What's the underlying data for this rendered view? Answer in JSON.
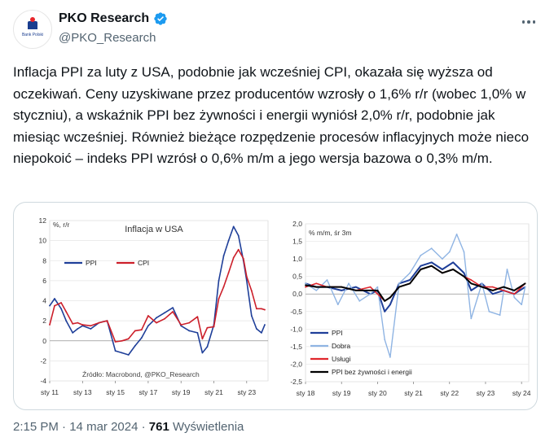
{
  "account": {
    "name": "PKO Research",
    "handle": "@PKO_Research",
    "avatar_caption": "Bank Polski"
  },
  "tweet": {
    "text": "Inflacja PPI za luty z USA, podobnie jak wcześniej CPI, okazała się wyższa od oczekiwań. Ceny uzyskiwane przez producentów wzrosły o 1,6% r/r (wobec 1,0% w styczniu), a wskaźnik PPI bez żywności i energii wyniósł 2,0% r/r, podobnie jak miesiąc wcześniej. Również bieżące rozpędzenie procesów inflacyjnych może nieco niepokoić – indeks PPI wzrósł o 0,6% m/m a jego wersja bazowa o 0,3% m/m."
  },
  "meta": {
    "time": "2:15 PM",
    "sep1": " · ",
    "date": "14 mar 2024",
    "sep2": " · ",
    "views": "761",
    "views_label": " Wyświetlenia"
  },
  "colors": {
    "ppi": "#1f3f99",
    "cpi": "#cc1f2a",
    "dobra": "#8fb4e3",
    "uslugi": "#e0262c",
    "core": "#000000"
  },
  "chart_data": [
    {
      "type": "line",
      "title": "Inflacja w USA",
      "ylabel": "%, r/r",
      "source": "Źródło: Macrobond, @PKO_Research",
      "ylim": [
        -4,
        12
      ],
      "yticks": [
        -4,
        -2,
        0,
        2,
        4,
        6,
        8,
        10,
        12
      ],
      "xlim": [
        2011,
        2024.3
      ],
      "xticks": [
        {
          "x": 2011,
          "label": "sty 11"
        },
        {
          "x": 2013,
          "label": "sty 13"
        },
        {
          "x": 2015,
          "label": "sty 15"
        },
        {
          "x": 2017,
          "label": "sty 17"
        },
        {
          "x": 2019,
          "label": "sty 19"
        },
        {
          "x": 2021,
          "label": "sty 21"
        },
        {
          "x": 2023,
          "label": "sty 23"
        }
      ],
      "legend_placement": "left",
      "series": [
        {
          "name": "PPI",
          "color": "#1f3f99",
          "x": [
            2011,
            2011.3,
            2011.7,
            2012,
            2012.4,
            2012.7,
            2013,
            2013.5,
            2014,
            2014.5,
            2015,
            2015.4,
            2015.8,
            2016.2,
            2016.6,
            2017,
            2017.5,
            2018,
            2018.5,
            2019,
            2019.5,
            2020,
            2020.3,
            2020.6,
            2021,
            2021.3,
            2021.6,
            2021.9,
            2022.2,
            2022.5,
            2022.8,
            2023,
            2023.3,
            2023.6,
            2023.9,
            2024.1
          ],
          "values": [
            3.5,
            4.2,
            3.2,
            2.0,
            0.8,
            1.2,
            1.5,
            1.2,
            1.8,
            2.0,
            -1.0,
            -1.2,
            -1.4,
            -0.5,
            0.3,
            1.5,
            2.3,
            2.8,
            3.3,
            1.5,
            1.0,
            0.8,
            -1.2,
            -0.6,
            1.6,
            6.0,
            8.5,
            10.0,
            11.4,
            10.5,
            8.0,
            6.0,
            2.5,
            1.2,
            0.8,
            1.6
          ]
        },
        {
          "name": "CPI",
          "color": "#cc1f2a",
          "x": [
            2011,
            2011.3,
            2011.7,
            2012,
            2012.4,
            2012.7,
            2013,
            2013.5,
            2014,
            2014.5,
            2015,
            2015.4,
            2015.8,
            2016.2,
            2016.6,
            2017,
            2017.5,
            2018,
            2018.5,
            2019,
            2019.5,
            2020,
            2020.3,
            2020.6,
            2021,
            2021.3,
            2021.6,
            2021.9,
            2022.2,
            2022.5,
            2022.8,
            2023,
            2023.3,
            2023.6,
            2023.9,
            2024.1
          ],
          "values": [
            1.6,
            3.5,
            3.8,
            2.9,
            1.7,
            1.8,
            1.6,
            1.5,
            1.8,
            2.0,
            -0.1,
            0.0,
            0.2,
            1.0,
            1.1,
            2.5,
            1.8,
            2.2,
            2.9,
            1.6,
            1.8,
            2.4,
            0.2,
            1.3,
            1.4,
            4.2,
            5.4,
            6.8,
            8.3,
            9.1,
            8.2,
            6.4,
            5.0,
            3.2,
            3.2,
            3.1
          ]
        }
      ]
    },
    {
      "type": "line",
      "title": "",
      "ylabel": "% m/m, śr 3m",
      "ylim": [
        -2.5,
        2.0
      ],
      "yticks": [
        -2.5,
        -2.0,
        -1.5,
        -1.0,
        -0.5,
        0.0,
        0.5,
        1.0,
        1.5,
        2.0
      ],
      "ytick_labels": [
        "-2,5",
        "-2,0",
        "-1,5",
        "-1,0",
        "-0,5",
        "0,0",
        "0,5",
        "1,0",
        "1,5",
        "2,0"
      ],
      "xlim": [
        2018,
        2024.2
      ],
      "xticks": [
        {
          "x": 2018,
          "label": "sty 18"
        },
        {
          "x": 2019,
          "label": "sty 19"
        },
        {
          "x": 2020,
          "label": "sty 20"
        },
        {
          "x": 2021,
          "label": "sty 21"
        },
        {
          "x": 2022,
          "label": "sty 22"
        },
        {
          "x": 2023,
          "label": "sty 23"
        },
        {
          "x": 2024,
          "label": "sty 24"
        }
      ],
      "legend_placement": "bottom-left",
      "series": [
        {
          "name": "PPI",
          "color": "#1f3f99",
          "x": [
            2018,
            2018.3,
            2018.6,
            2019,
            2019.4,
            2019.8,
            2020,
            2020.2,
            2020.35,
            2020.6,
            2020.9,
            2021.2,
            2021.5,
            2021.8,
            2022.1,
            2022.4,
            2022.6,
            2022.9,
            2023.2,
            2023.5,
            2023.8,
            2024.1
          ],
          "values": [
            0.3,
            0.2,
            0.2,
            0.1,
            0.2,
            0.0,
            0.1,
            -0.5,
            -0.3,
            0.3,
            0.4,
            0.8,
            0.9,
            0.7,
            0.9,
            0.6,
            0.1,
            0.3,
            0.0,
            0.1,
            0.0,
            0.2
          ]
        },
        {
          "name": "Dobra",
          "color": "#8fb4e3",
          "x": [
            2018,
            2018.3,
            2018.6,
            2018.9,
            2019.2,
            2019.5,
            2019.8,
            2020,
            2020.2,
            2020.35,
            2020.6,
            2020.9,
            2021.2,
            2021.5,
            2021.8,
            2022.0,
            2022.2,
            2022.4,
            2022.6,
            2022.9,
            2023.1,
            2023.4,
            2023.6,
            2023.8,
            2024.0,
            2024.1
          ],
          "values": [
            0.3,
            0.1,
            0.4,
            -0.3,
            0.3,
            -0.2,
            0.0,
            0.2,
            -1.3,
            -1.8,
            0.3,
            0.6,
            1.1,
            1.3,
            1.0,
            1.2,
            1.7,
            1.2,
            -0.7,
            0.3,
            -0.5,
            -0.6,
            0.7,
            -0.1,
            -0.3,
            0.2
          ]
        },
        {
          "name": "Usługi",
          "color": "#e0262c",
          "x": [
            2018,
            2018.3,
            2018.6,
            2019,
            2019.4,
            2019.8,
            2020,
            2020.2,
            2020.35,
            2020.6,
            2020.9,
            2021.2,
            2021.5,
            2021.8,
            2022.1,
            2022.4,
            2022.6,
            2022.9,
            2023.2,
            2023.5,
            2023.8,
            2024.1
          ],
          "values": [
            0.2,
            0.3,
            0.2,
            0.2,
            0.1,
            0.2,
            0.0,
            -0.2,
            -0.1,
            0.2,
            0.3,
            0.7,
            0.8,
            0.6,
            0.7,
            0.5,
            0.4,
            0.2,
            0.2,
            0.1,
            0.0,
            0.3
          ]
        },
        {
          "name": "PPI bez żywności i energii",
          "color": "#000000",
          "x": [
            2018,
            2018.3,
            2018.6,
            2019,
            2019.4,
            2019.8,
            2020,
            2020.2,
            2020.35,
            2020.6,
            2020.9,
            2021.2,
            2021.5,
            2021.8,
            2022.1,
            2022.4,
            2022.6,
            2022.9,
            2023.2,
            2023.5,
            2023.8,
            2024.1
          ],
          "values": [
            0.25,
            0.2,
            0.2,
            0.2,
            0.1,
            0.1,
            0.1,
            -0.2,
            -0.1,
            0.2,
            0.3,
            0.7,
            0.8,
            0.6,
            0.7,
            0.5,
            0.3,
            0.2,
            0.1,
            0.2,
            0.1,
            0.3
          ]
        }
      ]
    }
  ]
}
